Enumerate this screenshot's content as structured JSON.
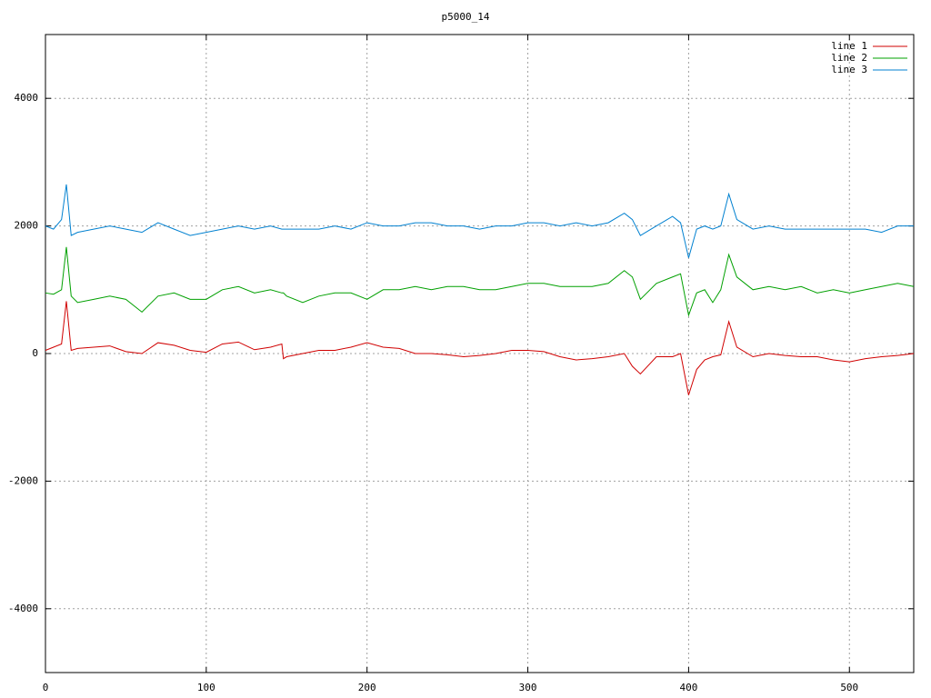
{
  "chart_data": {
    "type": "line",
    "title": "p5000_14",
    "x": [
      0,
      5,
      10,
      13,
      16,
      20,
      30,
      40,
      50,
      60,
      70,
      80,
      90,
      100,
      110,
      120,
      130,
      140,
      147,
      148,
      150,
      160,
      170,
      180,
      190,
      200,
      210,
      220,
      230,
      240,
      250,
      260,
      270,
      280,
      290,
      300,
      310,
      320,
      330,
      340,
      350,
      360,
      365,
      370,
      380,
      390,
      395,
      400,
      405,
      410,
      415,
      420,
      425,
      430,
      440,
      450,
      460,
      470,
      480,
      490,
      500,
      510,
      520,
      530,
      540
    ],
    "series": [
      {
        "name": "line 1",
        "color": "#d00000",
        "values": [
          50,
          100,
          150,
          820,
          50,
          80,
          100,
          120,
          30,
          0,
          170,
          130,
          50,
          20,
          150,
          180,
          60,
          100,
          150,
          -80,
          -50,
          0,
          50,
          50,
          100,
          170,
          100,
          80,
          0,
          0,
          -20,
          -50,
          -30,
          0,
          50,
          50,
          30,
          -50,
          -100,
          -80,
          -50,
          0,
          -200,
          -320,
          -50,
          -50,
          0,
          -650,
          -250,
          -100,
          -50,
          -20,
          500,
          100,
          -50,
          0,
          -30,
          -50,
          -50,
          -100,
          -130,
          -80,
          -50,
          -30,
          0
        ]
      },
      {
        "name": "line 2",
        "color": "#00a000",
        "values": [
          950,
          930,
          1000,
          1670,
          900,
          800,
          850,
          900,
          850,
          650,
          900,
          950,
          850,
          850,
          1000,
          1050,
          950,
          1000,
          950,
          950,
          900,
          800,
          900,
          950,
          950,
          850,
          1000,
          1000,
          1050,
          1000,
          1050,
          1050,
          1000,
          1000,
          1050,
          1100,
          1100,
          1050,
          1050,
          1050,
          1100,
          1300,
          1200,
          850,
          1100,
          1200,
          1250,
          600,
          950,
          1000,
          800,
          1000,
          1550,
          1200,
          1000,
          1050,
          1000,
          1050,
          950,
          1000,
          950,
          1000,
          1050,
          1100,
          1050
        ]
      },
      {
        "name": "line 3",
        "color": "#0080d0",
        "values": [
          2000,
          1950,
          2100,
          2650,
          1850,
          1900,
          1950,
          2000,
          1950,
          1900,
          2050,
          1950,
          1850,
          1900,
          1950,
          2000,
          1950,
          2000,
          1950,
          1950,
          1950,
          1950,
          1950,
          2000,
          1950,
          2050,
          2000,
          2000,
          2050,
          2050,
          2000,
          2000,
          1950,
          2000,
          2000,
          2050,
          2050,
          2000,
          2050,
          2000,
          2050,
          2200,
          2100,
          1850,
          2000,
          2150,
          2050,
          1500,
          1950,
          2000,
          1950,
          2000,
          2500,
          2100,
          1950,
          2000,
          1950,
          1950,
          1950,
          1950,
          1950,
          1950,
          1900,
          2000,
          2000
        ]
      }
    ],
    "xlim": [
      0,
      540
    ],
    "ylim": [
      -5000,
      5000
    ],
    "xticks": [
      0,
      100,
      200,
      300,
      400,
      500
    ],
    "yticks": [
      -4000,
      -2000,
      0,
      2000,
      4000
    ],
    "grid": true,
    "legend": "top-right"
  }
}
